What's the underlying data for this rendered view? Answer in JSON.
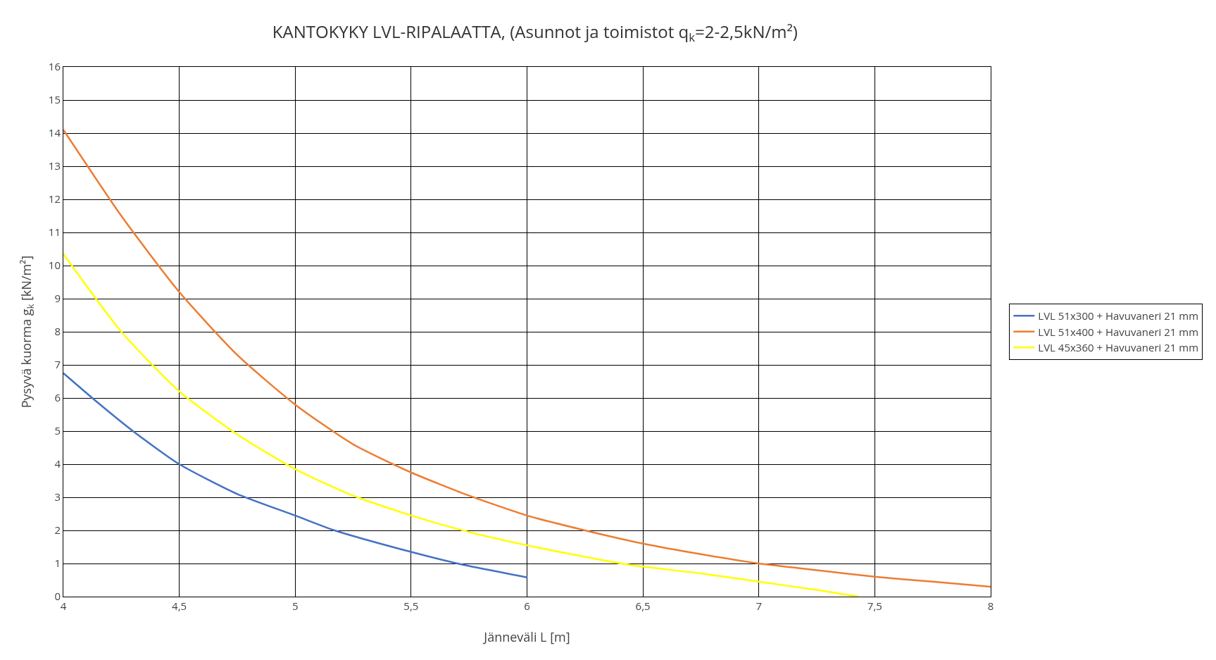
{
  "chart_data": {
    "type": "line",
    "title": "KANTOKYKY LVL-RIPALAATTA, (Asunnot ja toimistot q$_{k}$=2-2,5kN/m²)",
    "xlabel": "Jänneväli L [m]",
    "ylabel": "Pysyvä kuorma g$_{k}$ [kN/m²]",
    "xlim": [
      4,
      8
    ],
    "xticks": [
      4,
      {
        "value": 4.5,
        "label": "4,5"
      },
      5,
      {
        "value": 5.5,
        "label": "5,5"
      },
      6,
      {
        "value": 6.5,
        "label": "6,5"
      },
      7,
      {
        "value": 7.5,
        "label": "7,5"
      },
      8
    ],
    "ylim": [
      0,
      16
    ],
    "yticks": [
      0,
      1,
      2,
      3,
      4,
      5,
      6,
      7,
      8,
      9,
      10,
      11,
      12,
      13,
      14,
      15,
      16
    ],
    "grid": true,
    "legend": "right",
    "marker": "none",
    "line_style": "solid",
    "series": [
      {
        "name": "LVL 51x300 + Havuvaneri 21 mm",
        "color": "#4472c4",
        "x": [
          4,
          4.15,
          4.3,
          4.5,
          4.75,
          5,
          5.17,
          5.5,
          5.7,
          6
        ],
        "values": [
          6.75,
          5.85,
          5.0,
          4.0,
          3.1,
          2.45,
          2.0,
          1.35,
          1.0,
          0.58
        ]
      },
      {
        "name": "LVL 51x400 + Havuvaneri 21 mm",
        "color": "#ed7d31",
        "x": [
          4,
          4.25,
          4.5,
          4.75,
          5,
          5.25,
          5.5,
          5.75,
          6,
          6.25,
          6.5,
          6.75,
          7,
          7.25,
          7.5,
          7.75,
          8
        ],
        "values": [
          14.1,
          11.5,
          9.2,
          7.3,
          5.8,
          4.6,
          3.75,
          3.05,
          2.45,
          2.0,
          1.6,
          1.28,
          1.0,
          0.8,
          0.6,
          0.45,
          0.3
        ]
      },
      {
        "name": "LVL 45x360 + Havuvaneri 21 mm",
        "color": "#ffff00",
        "x": [
          4,
          4.25,
          4.5,
          4.75,
          5,
          5.25,
          5.5,
          5.75,
          6,
          6.25,
          6.45,
          6.75,
          7,
          7.25,
          7.43
        ],
        "values": [
          10.35,
          8.0,
          6.2,
          4.9,
          3.85,
          3.05,
          2.45,
          1.95,
          1.55,
          1.2,
          0.95,
          0.7,
          0.45,
          0.2,
          0.0
        ]
      }
    ]
  }
}
